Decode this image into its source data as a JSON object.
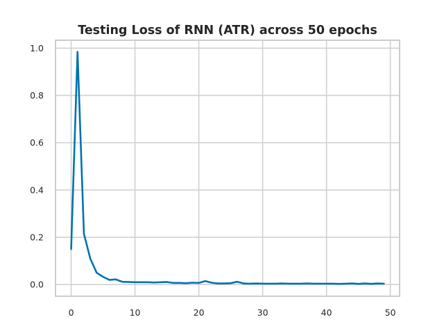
{
  "chart_data": {
    "type": "line",
    "title": "Testing Loss of RNN (ATR) across 50 epochs",
    "xlabel": "",
    "ylabel": "",
    "xlim": [
      -2.45,
      51.45
    ],
    "ylim": [
      -0.0492,
      1.0335
    ],
    "xticks": [
      0,
      10,
      20,
      30,
      40,
      50
    ],
    "xtick_labels": [
      "0",
      "10",
      "20",
      "30",
      "40",
      "50"
    ],
    "yticks": [
      0.0,
      0.2,
      0.4,
      0.6,
      0.8,
      1.0
    ],
    "ytick_labels": [
      "0.0",
      "0.2",
      "0.4",
      "0.6",
      "0.8",
      "1.0"
    ],
    "grid": true,
    "legend": "none",
    "series": [
      {
        "name": "Testing Loss",
        "color": "#0072b2",
        "x": [
          0,
          1,
          2,
          3,
          4,
          5,
          6,
          7,
          8,
          9,
          10,
          11,
          12,
          13,
          14,
          15,
          16,
          17,
          18,
          19,
          20,
          21,
          22,
          23,
          24,
          25,
          26,
          27,
          28,
          29,
          30,
          31,
          32,
          33,
          34,
          35,
          36,
          37,
          38,
          39,
          40,
          41,
          42,
          43,
          44,
          45,
          46,
          47,
          48,
          49
        ],
        "values": [
          0.15,
          0.985,
          0.215,
          0.11,
          0.05,
          0.033,
          0.02,
          0.022,
          0.012,
          0.011,
          0.01,
          0.01,
          0.01,
          0.009,
          0.01,
          0.011,
          0.007,
          0.007,
          0.006,
          0.008,
          0.007,
          0.015,
          0.008,
          0.005,
          0.005,
          0.006,
          0.012,
          0.005,
          0.004,
          0.005,
          0.004,
          0.004,
          0.004,
          0.005,
          0.004,
          0.004,
          0.004,
          0.005,
          0.004,
          0.004,
          0.004,
          0.004,
          0.003,
          0.004,
          0.005,
          0.003,
          0.005,
          0.003,
          0.005,
          0.004
        ]
      }
    ]
  }
}
